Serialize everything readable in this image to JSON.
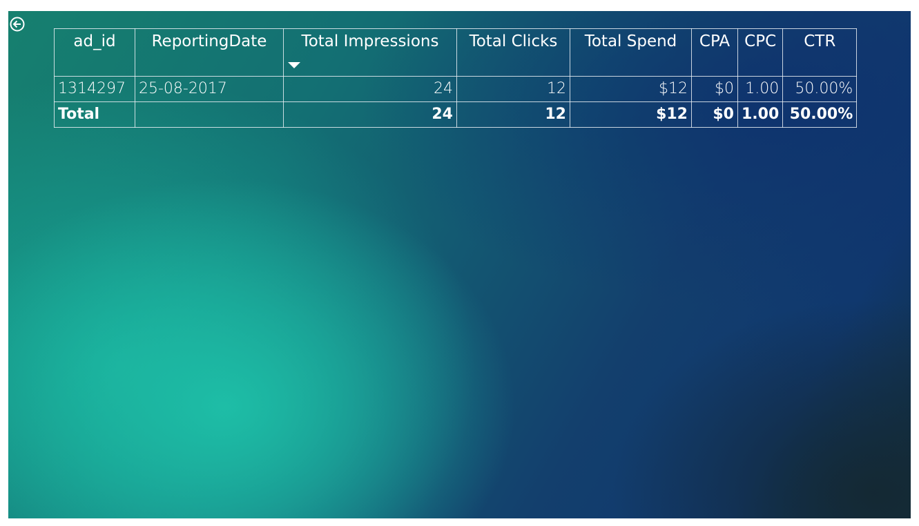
{
  "nav": {
    "back_icon": "arrow-left-circle-icon"
  },
  "table": {
    "columns": [
      "ad_id",
      "ReportingDate",
      "Total Impressions",
      "Total Clicks",
      "Total Spend",
      "CPA",
      "CPC",
      "CTR"
    ],
    "sorted_column": "Total Impressions",
    "sort_direction": "descending",
    "rows": [
      [
        "1314297",
        "25-08-2017",
        "24",
        "12",
        "$12",
        "$0",
        "1.00",
        "50.00%"
      ]
    ],
    "total": [
      "Total",
      "",
      "24",
      "12",
      "$12",
      "$0",
      "1.00",
      "50.00%"
    ]
  }
}
